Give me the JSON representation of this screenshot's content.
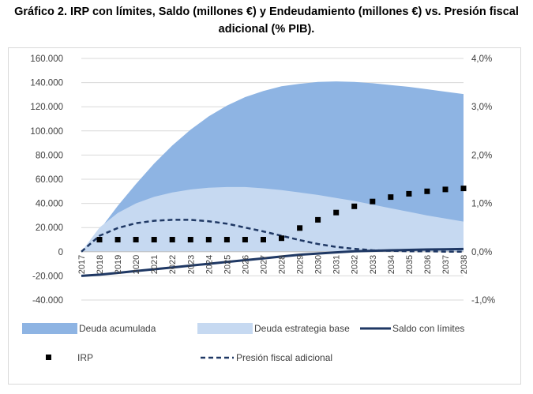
{
  "title_line1": "Gráfico 2. IRP con límites, Saldo (millones €) y Endeudamiento (millones €) vs. Presión fiscal",
  "title_line2": "adicional (% PIB).",
  "chart_data": {
    "type": "area",
    "categories": [
      "2017",
      "2018",
      "2019",
      "2020",
      "2021",
      "2022",
      "2023",
      "2024",
      "2025",
      "2026",
      "2027",
      "2028",
      "2029",
      "2030",
      "2031",
      "2032",
      "2033",
      "2034",
      "2035",
      "2036",
      "2037",
      "2038"
    ],
    "y_left": {
      "ticks": [
        "160.000",
        "140.000",
        "120.000",
        "100.000",
        "80.000",
        "60.000",
        "40.000",
        "20.000",
        "0",
        "-20.000",
        "-40.000"
      ],
      "ylim": [
        -40000,
        160000
      ]
    },
    "y_right": {
      "ticks": [
        "4,0%",
        "3,0%",
        "2,0%",
        "1,0%",
        "0,0%",
        "-1,0%"
      ],
      "ylim": [
        -0.01,
        0.04
      ]
    },
    "grid": true,
    "legend_position": "bottom",
    "series": [
      {
        "name": "Deuda acumulada",
        "kind": "area",
        "axis": "left",
        "color": "#8eb4e3",
        "values": [
          0,
          18000,
          38000,
          56000,
          73000,
          88000,
          101000,
          112000,
          121000,
          128000,
          133000,
          137000,
          139000,
          140500,
          141000,
          140500,
          139500,
          138000,
          136500,
          134500,
          132500,
          130500
        ]
      },
      {
        "name": "Deuda estrategia base",
        "kind": "area",
        "axis": "left",
        "color": "#c6d9f1",
        "values": [
          0,
          20000,
          32000,
          40000,
          45500,
          49000,
          51500,
          53000,
          53500,
          53500,
          52500,
          51000,
          49000,
          47000,
          44500,
          42000,
          39000,
          36000,
          33000,
          30000,
          27500,
          25000
        ]
      },
      {
        "name": "Saldo con límites",
        "kind": "line",
        "axis": "left",
        "color": "#1f3864",
        "values": [
          -20000,
          -19000,
          -17500,
          -16000,
          -14500,
          -13000,
          -11500,
          -10000,
          -8500,
          -7000,
          -5500,
          -4000,
          -2500,
          -1500,
          -500,
          300,
          800,
          1200,
          1500,
          1800,
          2000,
          2200
        ]
      },
      {
        "name": "IRP",
        "kind": "markers",
        "axis": "right",
        "color": "#000000",
        "values": [
          null,
          0.0025,
          0.0025,
          0.0025,
          0.0025,
          0.0025,
          0.0025,
          0.0025,
          0.0025,
          0.0025,
          0.0025,
          0.0028,
          0.0049,
          0.0066,
          0.0081,
          0.0094,
          0.0104,
          0.0113,
          0.012,
          0.0125,
          0.0129,
          0.0131
        ]
      },
      {
        "name": "Presión fiscal adicional",
        "kind": "dashed-line",
        "axis": "right",
        "color": "#1f3864",
        "values": [
          0,
          0.0033,
          0.0049,
          0.0059,
          0.0064,
          0.0066,
          0.0066,
          0.0063,
          0.0058,
          0.005,
          0.0042,
          0.0033,
          0.0024,
          0.0016,
          0.001,
          0.0006,
          0.0003,
          0.0002,
          0.0001,
          0.0001,
          0.0,
          0.0
        ]
      }
    ]
  }
}
